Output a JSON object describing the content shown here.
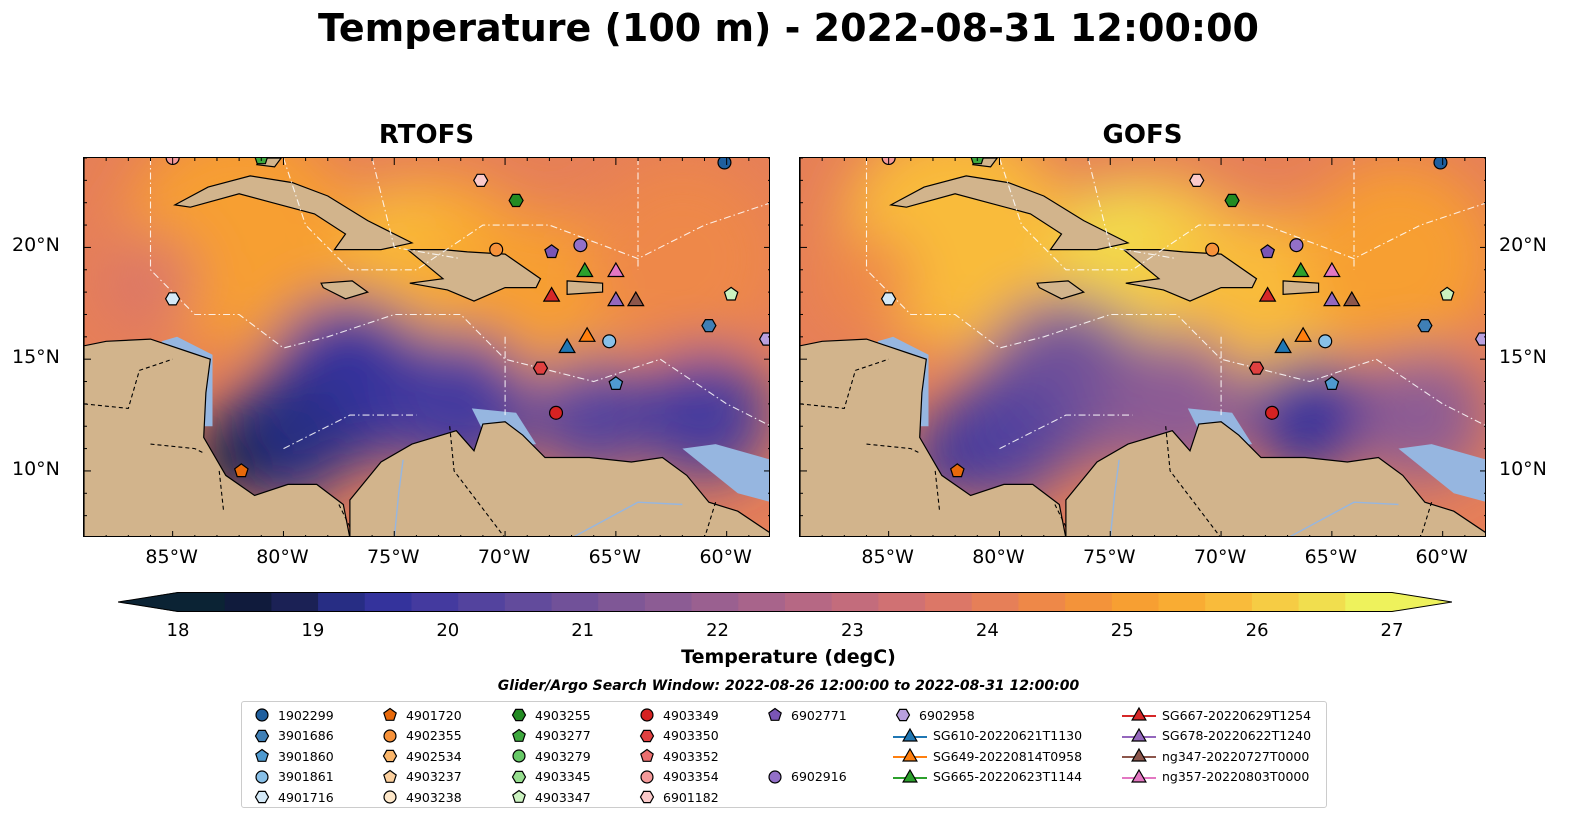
{
  "title": "Temperature (100 m) - 2022-08-31 12:00:00",
  "panels": [
    {
      "title": "RTOFS"
    },
    {
      "title": "GOFS"
    }
  ],
  "lon_ticks": [
    "85°W",
    "80°W",
    "75°W",
    "70°W",
    "65°W",
    "60°W"
  ],
  "lat_ticks": [
    "20°N",
    "15°N",
    "10°N"
  ],
  "colorbar": {
    "label": "Temperature (degC)",
    "ticks": [
      "18",
      "19",
      "20",
      "21",
      "22",
      "23",
      "24",
      "25",
      "26",
      "27"
    ],
    "min": 18,
    "max": 27,
    "extend": "both",
    "colors": [
      "#0b2334",
      "#101b3c",
      "#1b2155",
      "#272d84",
      "#34339c",
      "#443a9f",
      "#53439e",
      "#624b9c",
      "#715199",
      "#7f5796",
      "#8c5c94",
      "#9a6090",
      "#a8648b",
      "#b66884",
      "#c36c7c",
      "#d07173",
      "#dc7767",
      "#e67f58",
      "#ee8848",
      "#f3933a",
      "#f79f32",
      "#f9ac33",
      "#f9bb3b",
      "#f6cc44",
      "#f1de4e",
      "#eef25c"
    ],
    "low_color": "#0b2334",
    "high_color": "#eef25c"
  },
  "search_window": "Glider/Argo Search Window: 2022-08-26 12:00:00 to 2022-08-31 12:00:00",
  "legend": [
    {
      "label": "1902299",
      "marker": "circle",
      "color": "#1f5f9e"
    },
    {
      "label": "3901686",
      "marker": "hexagon",
      "color": "#3f7fb5"
    },
    {
      "label": "3901860",
      "marker": "pentagon",
      "color": "#4f9ad0"
    },
    {
      "label": "3901861",
      "marker": "circle",
      "color": "#88c0e8"
    },
    {
      "label": "4901716",
      "marker": "hexagon",
      "color": "#d4e9f7"
    },
    {
      "label": "4901720",
      "marker": "pentagon",
      "color": "#e8690a"
    },
    {
      "label": "4902355",
      "marker": "circle",
      "color": "#f7923a"
    },
    {
      "label": "4902534",
      "marker": "hexagon",
      "color": "#f9b56a"
    },
    {
      "label": "4903237",
      "marker": "pentagon",
      "color": "#fcd09e"
    },
    {
      "label": "4903238",
      "marker": "circle",
      "color": "#fde7c9"
    },
    {
      "label": "4903255",
      "marker": "hexagon",
      "color": "#228b22"
    },
    {
      "label": "4903277",
      "marker": "pentagon",
      "color": "#3ea83e"
    },
    {
      "label": "4903279",
      "marker": "circle",
      "color": "#66c866"
    },
    {
      "label": "4903345",
      "marker": "hexagon",
      "color": "#96dd8e"
    },
    {
      "label": "4903347",
      "marker": "pentagon",
      "color": "#cbf2c0"
    },
    {
      "label": "4903349",
      "marker": "circle",
      "color": "#d62222"
    },
    {
      "label": "4903350",
      "marker": "hexagon",
      "color": "#e04040"
    },
    {
      "label": "4903352",
      "marker": "pentagon",
      "color": "#eb6f6f"
    },
    {
      "label": "4903354",
      "marker": "circle",
      "color": "#f59a9a"
    },
    {
      "label": "6901182",
      "marker": "hexagon",
      "color": "#fbcaca"
    },
    {
      "label": "6902771",
      "marker": "pentagon",
      "color": "#7a55b5"
    },
    {
      "label": "6902916",
      "marker": "circle",
      "color": "#9370c8"
    },
    {
      "label": "6902958",
      "marker": "hexagon",
      "color": "#b9a0de"
    },
    {
      "label": "SG610-20220621T1130",
      "marker": "triangle",
      "color": "#1f77b4"
    },
    {
      "label": "SG649-20220814T0958",
      "marker": "triangle",
      "color": "#ff7f0e"
    },
    {
      "label": "SG665-20220623T1144",
      "marker": "triangle",
      "color": "#2ca02c"
    },
    {
      "label": "SG667-20220629T1254",
      "marker": "triangle",
      "color": "#d62728"
    },
    {
      "label": "SG678-20220622T1240",
      "marker": "triangle",
      "color": "#9467bd"
    },
    {
      "label": "ng347-20220727T0000",
      "marker": "triangle",
      "color": "#8c564b"
    },
    {
      "label": "ng357-20220803T0000",
      "marker": "triangle",
      "color": "#e377c2"
    }
  ],
  "map_extent": {
    "lon": [
      -89,
      -58
    ],
    "lat": [
      7,
      24
    ]
  },
  "platform_positions": [
    {
      "id": "1902299",
      "lon": -60.1,
      "lat": 23.8
    },
    {
      "id": "3901686",
      "lon": -60.8,
      "lat": 16.5
    },
    {
      "id": "3901860",
      "lon": -65.0,
      "lat": 13.9
    },
    {
      "id": "3901861",
      "lon": -65.3,
      "lat": 15.8
    },
    {
      "id": "4901716",
      "lon": -85.0,
      "lat": 17.7
    },
    {
      "id": "4901720",
      "lon": -81.9,
      "lat": 10.0
    },
    {
      "id": "4902355",
      "lon": -70.4,
      "lat": 19.9
    },
    {
      "id": "4903255",
      "lon": -69.5,
      "lat": 22.1
    },
    {
      "id": "4903277",
      "lon": -81.0,
      "lat": 24.0
    },
    {
      "id": "4903347",
      "lon": -59.8,
      "lat": 17.9
    },
    {
      "id": "4903349",
      "lon": -67.7,
      "lat": 12.6
    },
    {
      "id": "4903350",
      "lon": -68.4,
      "lat": 14.6
    },
    {
      "id": "4903354",
      "lon": -85.0,
      "lat": 24.0
    },
    {
      "id": "6901182",
      "lon": -71.1,
      "lat": 23.0
    },
    {
      "id": "6902771",
      "lon": -67.9,
      "lat": 19.8
    },
    {
      "id": "6902916",
      "lon": -66.6,
      "lat": 20.1
    },
    {
      "id": "6902958",
      "lon": -58.2,
      "lat": 15.9
    },
    {
      "id": "SG610-20220621T1130",
      "lon": -67.2,
      "lat": 15.5
    },
    {
      "id": "SG649-20220814T0958",
      "lon": -66.3,
      "lat": 16.0
    },
    {
      "id": "SG665-20220623T1144",
      "lon": -66.4,
      "lat": 18.9
    },
    {
      "id": "SG667-20220629T1254",
      "lon": -67.9,
      "lat": 17.8
    },
    {
      "id": "SG678-20220622T1240",
      "lon": -65.0,
      "lat": 17.6
    },
    {
      "id": "ng347-20220727T0000",
      "lon": -64.1,
      "lat": 17.6
    },
    {
      "id": "ng357-20220803T0000",
      "lon": -65.0,
      "lat": 18.9
    }
  ]
}
